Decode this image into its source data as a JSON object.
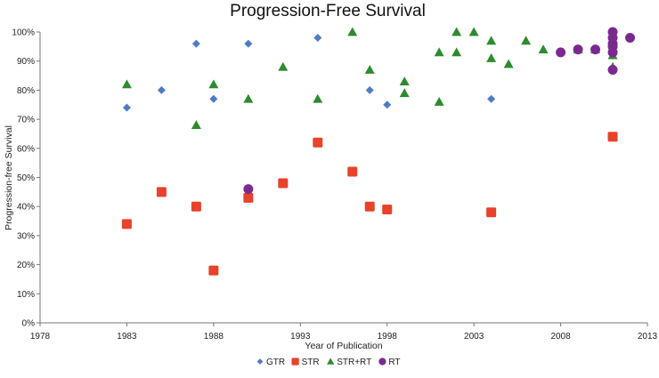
{
  "chart_data": {
    "type": "scatter",
    "title": "Progression-Free Survival",
    "xlabel": "Year of Publication",
    "ylabel": "Progression-free Survival",
    "xlim": [
      1978,
      2013
    ],
    "ylim": [
      0,
      100
    ],
    "x_ticks": [
      "1978",
      "1983",
      "1988",
      "1993",
      "1998",
      "2003",
      "2008",
      "2013"
    ],
    "y_ticks": [
      "0%",
      "10%",
      "20%",
      "30%",
      "40%",
      "50%",
      "60%",
      "70%",
      "80%",
      "90%",
      "100%"
    ],
    "grid": "none",
    "legend_position": "bottom",
    "series": [
      {
        "name": "GTR",
        "marker": "diamond",
        "color": "#4f7bc6",
        "points": [
          {
            "x": 1983,
            "y": 74
          },
          {
            "x": 1985,
            "y": 80
          },
          {
            "x": 1987,
            "y": 96
          },
          {
            "x": 1988,
            "y": 77
          },
          {
            "x": 1990,
            "y": 96
          },
          {
            "x": 1994,
            "y": 98
          },
          {
            "x": 1997,
            "y": 80
          },
          {
            "x": 1998,
            "y": 75
          },
          {
            "x": 2004,
            "y": 77
          },
          {
            "x": 2011,
            "y": 96
          }
        ]
      },
      {
        "name": "STR",
        "marker": "square",
        "color": "#e8422a",
        "points": [
          {
            "x": 1983,
            "y": 34
          },
          {
            "x": 1985,
            "y": 45
          },
          {
            "x": 1987,
            "y": 40
          },
          {
            "x": 1988,
            "y": 18
          },
          {
            "x": 1990,
            "y": 43
          },
          {
            "x": 1992,
            "y": 48
          },
          {
            "x": 1994,
            "y": 62
          },
          {
            "x": 1996,
            "y": 52
          },
          {
            "x": 1997,
            "y": 40
          },
          {
            "x": 1998,
            "y": 39
          },
          {
            "x": 2004,
            "y": 38
          },
          {
            "x": 2011,
            "y": 64
          }
        ]
      },
      {
        "name": "STR+RT",
        "marker": "triangle",
        "color": "#2e8b2e",
        "points": [
          {
            "x": 1983,
            "y": 82
          },
          {
            "x": 1987,
            "y": 68
          },
          {
            "x": 1988,
            "y": 82
          },
          {
            "x": 1990,
            "y": 77
          },
          {
            "x": 1992,
            "y": 88
          },
          {
            "x": 1994,
            "y": 77
          },
          {
            "x": 1996,
            "y": 100
          },
          {
            "x": 1997,
            "y": 87
          },
          {
            "x": 1999,
            "y": 83
          },
          {
            "x": 1999,
            "y": 79
          },
          {
            "x": 2001,
            "y": 93
          },
          {
            "x": 2001,
            "y": 76
          },
          {
            "x": 2002,
            "y": 100
          },
          {
            "x": 2002,
            "y": 93
          },
          {
            "x": 2003,
            "y": 100
          },
          {
            "x": 2004,
            "y": 97
          },
          {
            "x": 2004,
            "y": 91
          },
          {
            "x": 2005,
            "y": 89
          },
          {
            "x": 2006,
            "y": 97
          },
          {
            "x": 2007,
            "y": 94
          },
          {
            "x": 2009,
            "y": 94
          },
          {
            "x": 2010,
            "y": 94
          },
          {
            "x": 2011,
            "y": 92
          },
          {
            "x": 2011,
            "y": 88
          }
        ]
      },
      {
        "name": "RT",
        "marker": "circle",
        "color": "#7a2a8f",
        "points": [
          {
            "x": 1990,
            "y": 46
          },
          {
            "x": 2008,
            "y": 93
          },
          {
            "x": 2009,
            "y": 94
          },
          {
            "x": 2010,
            "y": 94
          },
          {
            "x": 2011,
            "y": 100
          },
          {
            "x": 2011,
            "y": 98
          },
          {
            "x": 2011,
            "y": 96
          },
          {
            "x": 2011,
            "y": 95
          },
          {
            "x": 2011,
            "y": 93
          },
          {
            "x": 2011,
            "y": 87
          },
          {
            "x": 2012,
            "y": 98
          }
        ]
      }
    ]
  }
}
